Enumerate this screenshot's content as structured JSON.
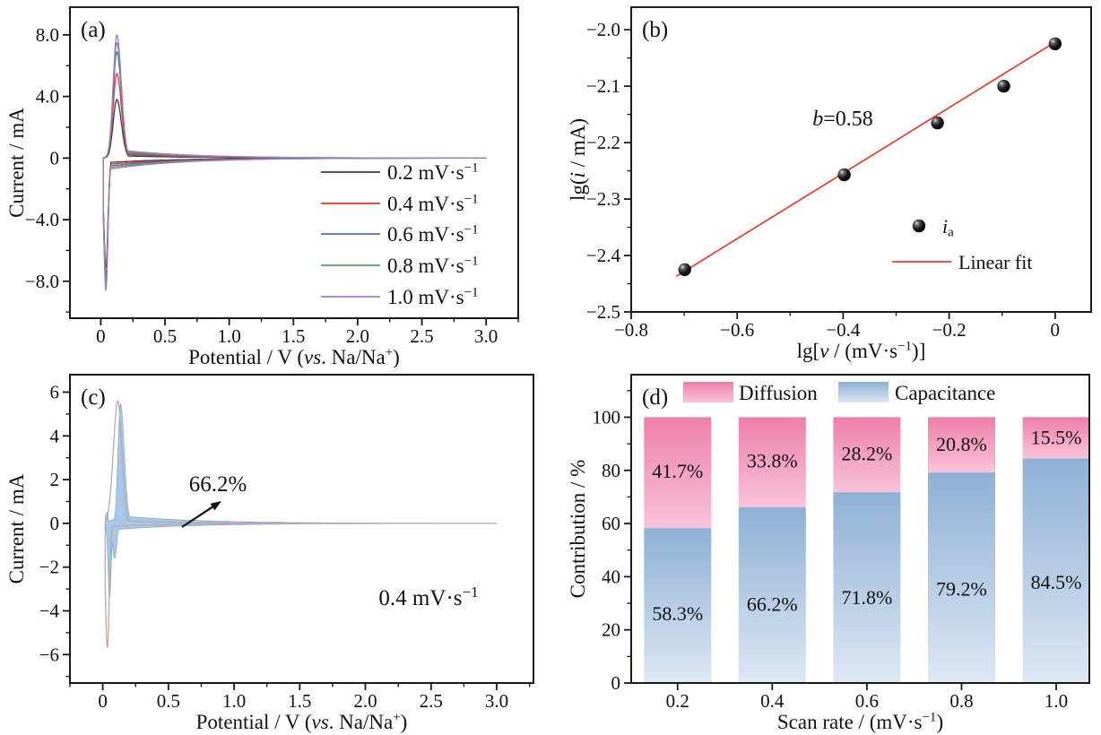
{
  "chart_data": [
    {
      "id": "a",
      "panel_label": "(a)",
      "type": "line",
      "kind": "cyclic-voltammetry-multi-scan-rate",
      "xlabel_rich": [
        {
          "t": "Potential / V ("
        },
        {
          "t": "vs",
          "i": true
        },
        {
          "t": ". Na/Na"
        },
        {
          "t": "+",
          "sup": true
        },
        {
          "t": ")"
        }
      ],
      "ylabel_rich": [
        {
          "t": "Current / mA"
        }
      ],
      "xlim": [
        -0.24,
        3.25
      ],
      "ylim": [
        -10.4,
        9.8
      ],
      "xticks": {
        "values": [
          0,
          0.5,
          1.0,
          1.5,
          2.0,
          2.5,
          3.0
        ],
        "labels": [
          "0",
          "0.5",
          "1.0",
          "1.5",
          "2.0",
          "2.5",
          "3.0"
        ],
        "minor_step": 0.25
      },
      "yticks": {
        "values": [
          -8,
          -4,
          0,
          4,
          8
        ],
        "labels": [
          "−8.0",
          "−4.0",
          "0",
          "4.0",
          "8.0"
        ],
        "minor_step": 2
      },
      "grid": false,
      "legend_position": "inside-right-bottom",
      "curve_shape": {
        "x_start": 0.02,
        "x_end": 3.0,
        "anodic_peak_x": 0.125,
        "anodic_width_left": 0.04,
        "anodic_width_right": 0.05,
        "cathodic_min_x": 0.04,
        "cathodic_width": 0.022,
        "tail_decay": 0.55
      },
      "series": [
        {
          "label_rich": [
            {
              "t": "0.2 mV·s"
            },
            {
              "t": "−1",
              "sup": true
            }
          ],
          "color": "#3b3b3b",
          "anodic_peak_mA": 3.8,
          "cathodic_min_mA": 7.1,
          "anodic_tail_mA": 0.16,
          "cathodic_tail_mA": 0.3
        },
        {
          "label_rich": [
            {
              "t": "0.4 mV·s"
            },
            {
              "t": "−1",
              "sup": true
            }
          ],
          "color": "#e6372c",
          "anodic_peak_mA": 5.5,
          "cathodic_min_mA": 7.7,
          "anodic_tail_mA": 0.27,
          "cathodic_tail_mA": 0.42
        },
        {
          "label_rich": [
            {
              "t": "0.6 mV·s"
            },
            {
              "t": "−1",
              "sup": true
            }
          ],
          "color": "#4e6fae",
          "anodic_peak_mA": 6.9,
          "cathodic_min_mA": 8.1,
          "anodic_tail_mA": 0.37,
          "cathodic_tail_mA": 0.54
        },
        {
          "label_rich": [
            {
              "t": "0.8 mV·s"
            },
            {
              "t": "−1",
              "sup": true
            }
          ],
          "color": "#54a173",
          "anodic_peak_mA": 7.5,
          "cathodic_min_mA": 8.4,
          "anodic_tail_mA": 0.46,
          "cathodic_tail_mA": 0.65
        },
        {
          "label_rich": [
            {
              "t": "1.0 mV·s"
            },
            {
              "t": "−1",
              "sup": true
            }
          ],
          "color": "#a07cc3",
          "anodic_peak_mA": 8.0,
          "cathodic_min_mA": 8.6,
          "anodic_tail_mA": 0.55,
          "cathodic_tail_mA": 0.76
        }
      ]
    },
    {
      "id": "b",
      "panel_label": "(b)",
      "type": "scatter",
      "kind": "b-value-linear-fit",
      "xlabel_rich": [
        {
          "t": "lg["
        },
        {
          "t": "v",
          "i": true
        },
        {
          "t": " / (mV·s"
        },
        {
          "t": "−1",
          "sup": true
        },
        {
          "t": ")]"
        }
      ],
      "ylabel_rich": [
        {
          "t": "lg("
        },
        {
          "t": "i",
          "i": true
        },
        {
          "t": " / mA)"
        }
      ],
      "xlim": [
        -0.8,
        0.068
      ],
      "ylim": [
        -2.5,
        -1.96
      ],
      "xticks": {
        "values": [
          -0.8,
          -0.6,
          -0.4,
          -0.2,
          0
        ],
        "labels": [
          "−0.8",
          "−0.6",
          "−0.4",
          "−0.2",
          "0"
        ],
        "minor_step": 0.1
      },
      "yticks": {
        "values": [
          -2.5,
          -2.4,
          -2.3,
          -2.2,
          -2.1,
          -2.0
        ],
        "labels": [
          "−2.5",
          "−2.4",
          "−2.3",
          "−2.2",
          "−2.1",
          "−2.0"
        ],
        "minor_step": 0.05
      },
      "grid": false,
      "points": {
        "x": [
          -0.699,
          -0.398,
          -0.222,
          -0.097,
          0
        ],
        "y": [
          -2.425,
          -2.257,
          -2.165,
          -2.1,
          -2.025
        ],
        "marker": "sphere",
        "color": "#111111"
      },
      "fit": {
        "slope_b": 0.58,
        "x1": -0.715,
        "y1": -2.437,
        "x2": 0.005,
        "y2": -2.019,
        "color": "#f0392b"
      },
      "annotation_rich": [
        {
          "t": "b",
          "i": true
        },
        {
          "t": "=0.58"
        }
      ],
      "legend": [
        {
          "marker": "sphere",
          "label_rich": [
            {
              "t": "i",
              "i": true
            },
            {
              "t": "a",
              "sub": true
            }
          ]
        },
        {
          "marker": "line",
          "label_rich": [
            {
              "t": "Linear fit"
            }
          ]
        }
      ]
    },
    {
      "id": "c",
      "panel_label": "(c)",
      "type": "line",
      "kind": "cv-capacitive-contribution",
      "xlabel_rich": [
        {
          "t": "Potential /  V ("
        },
        {
          "t": "vs",
          "i": true
        },
        {
          "t": ". Na/Na"
        },
        {
          "t": "+",
          "sup": true
        },
        {
          "t": ")"
        }
      ],
      "ylabel_rich": [
        {
          "t": "Current / mA"
        }
      ],
      "xlim": [
        -0.25,
        3.28
      ],
      "ylim": [
        -7.3,
        6.8
      ],
      "xticks": {
        "values": [
          0,
          0.5,
          1.0,
          1.5,
          2.0,
          2.5,
          3.0
        ],
        "labels": [
          "0",
          "0.5",
          "1.0",
          "1.5",
          "2.0",
          "2.5",
          "3.0"
        ],
        "minor_step": 0.25
      },
      "yticks": {
        "values": [
          -6,
          -4,
          -2,
          0,
          2,
          4,
          6
        ],
        "labels": [
          "−6",
          "−4",
          "−2",
          "0",
          "2",
          "4",
          "6"
        ],
        "minor_step": 1
      },
      "grid": false,
      "annotation": "66.2%",
      "scan_rate_rich": [
        {
          "t": "0.4 mV·s"
        },
        {
          "t": "−1",
          "sup": true
        }
      ],
      "total_curve": {
        "color": "#b9aba3",
        "anodic_peak_mA": 5.6,
        "cathodic_min_mA": 5.7,
        "anodic_tail_mA": 0.12,
        "cathodic_tail_mA": 0.14,
        "shape": {
          "x_start": 0.018,
          "x_end": 3.0,
          "anodic_peak_x": 0.115,
          "anodic_width_left": 0.048,
          "anodic_width_right": 0.042,
          "cathodic_min_x": 0.035,
          "cathodic_width": 0.02,
          "tail_decay": 0.5
        }
      },
      "capacitive_fill": {
        "fill": "#a8c8ea",
        "edge": "#7fa9d9",
        "percent": 66.2,
        "anodic_peak_mA": 5.45,
        "cathodic_min_mA": 3.4,
        "anodic_tail_mA": 0.34,
        "cathodic_tail_mA": 0.3,
        "shape": {
          "x_start": 0.02,
          "x_end": 3.0,
          "anodic_peak_x": 0.135,
          "anodic_width_left": 0.026,
          "anodic_width_right": 0.04,
          "cathodic_min_x": 0.052,
          "cathodic_width": 0.016,
          "tail_decay": 0.6,
          "bump": {
            "x": 0.03,
            "w": 0.013,
            "a": 0.5
          },
          "dip2": {
            "x": 0.09,
            "w": 0.022,
            "a": 1.6
          }
        }
      }
    },
    {
      "id": "d",
      "panel_label": "(d)",
      "type": "bar",
      "stacked": true,
      "kind": "contribution-ratio-stacked-bars",
      "categories": [
        "0.2",
        "0.4",
        "0.6",
        "0.8",
        "1.0"
      ],
      "xlabel_rich": [
        {
          "t": "Scan rate / (mV·s"
        },
        {
          "t": "−1",
          "sup": true
        },
        {
          "t": ")"
        }
      ],
      "ylabel_rich": [
        {
          "t": "Contribution / %"
        }
      ],
      "ylim": [
        0,
        116
      ],
      "yticks": {
        "values": [
          0,
          20,
          40,
          60,
          80,
          100
        ],
        "labels": [
          "0",
          "20",
          "40",
          "60",
          "80",
          "100"
        ],
        "minor_step": 10
      },
      "grid": false,
      "bar_width_ratio": 0.71,
      "series": [
        {
          "name": "Capacitance",
          "values": [
            58.3,
            66.2,
            71.8,
            79.2,
            84.5
          ],
          "value_labels": [
            "58.3%",
            "66.2%",
            "71.8%",
            "79.2%",
            "84.5%"
          ],
          "gradient_bottom": "#dde8f4",
          "gradient_top": "#8fb0d5"
        },
        {
          "name": "Diffusion",
          "values": [
            41.7,
            33.8,
            28.2,
            20.8,
            15.5
          ],
          "value_labels": [
            "41.7%",
            "33.8%",
            "28.2%",
            "20.8%",
            "15.5%"
          ],
          "gradient_bottom": "#f9c3d8",
          "gradient_top": "#ee7fab"
        }
      ],
      "legend_order": [
        "Diffusion",
        "Capacitance"
      ]
    }
  ]
}
